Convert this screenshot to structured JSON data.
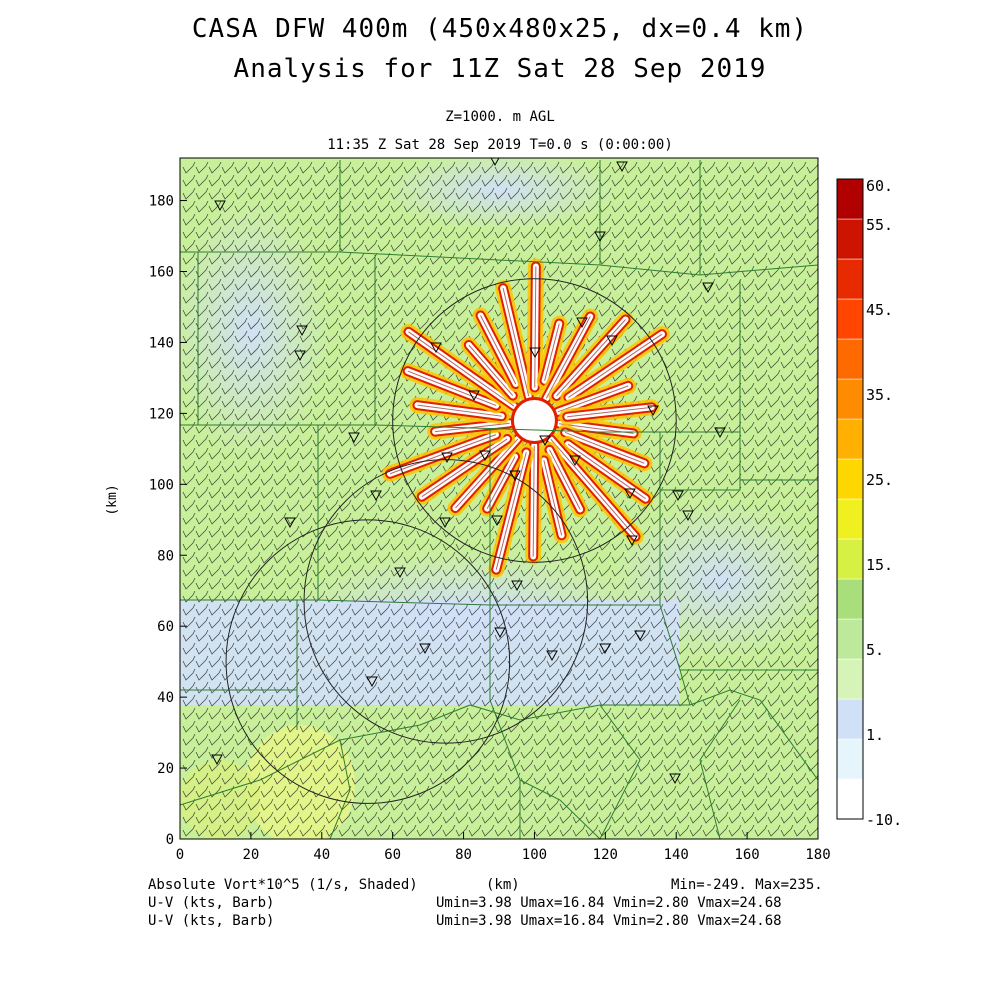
{
  "header": {
    "title_line1": "CASA DFW 400m (450x480x25, dx=0.4 km)",
    "title_line2": "Analysis for 11Z Sat 28 Sep 2019",
    "level": "Z=1000. m AGL",
    "valid_time": "11:35 Z Sat 28 Sep 2019    T=0.0 s (0:00:00)"
  },
  "map": {
    "x_axis": {
      "label": "(km)",
      "ticks": [
        0,
        20,
        40,
        60,
        80,
        100,
        120,
        140,
        160,
        180
      ],
      "range": [
        0,
        180
      ]
    },
    "y_axis": {
      "label": "(km)",
      "ticks": [
        0,
        20,
        40,
        60,
        80,
        100,
        120,
        140,
        160,
        180
      ],
      "range": [
        0,
        192
      ]
    },
    "field": "absolute vorticity shaded, wind barbs overlaid, county boundaries, radar range rings",
    "radar_rings_km": [
      {
        "cx": 100,
        "cy": 118,
        "r": 40
      },
      {
        "cx": 75,
        "cy": 67,
        "r": 40
      },
      {
        "cx": 53,
        "cy": 50,
        "r": 40
      }
    ],
    "colors": {
      "background": "#c8f09a",
      "low": "#d2e0fa",
      "mid": "#e2f58a",
      "high": "#e11f00",
      "contour": "#8a0000"
    }
  },
  "colorbar": {
    "levels": [
      "60.",
      "55.",
      "45.",
      "35.",
      "25.",
      "15.",
      "5.",
      "1.",
      "-10."
    ],
    "colors": [
      "#ffffff",
      "#e6f4fb",
      "#cfe0f7",
      "#d7f4b8",
      "#bde99a",
      "#a8df7a",
      "#d7f044",
      "#f0f020",
      "#ffd700",
      "#ffb000",
      "#ff8c00",
      "#ff6a00",
      "#ff4500",
      "#e82a00",
      "#cc1400",
      "#b00000"
    ]
  },
  "footer": {
    "var1": "Absolute Vort*10^5 (1/s, Shaded)",
    "xunit": "(km)",
    "minmax": "Min=-249. Max=235.",
    "var2": "U-V (kts, Barb)",
    "stats2": "Umin=3.98 Umax=16.84 Vmin=2.80 Vmax=24.68",
    "var3": "U-V (kts, Barb)",
    "stats3": "Umin=3.98 Umax=16.84 Vmin=2.80 Vmax=24.68"
  }
}
